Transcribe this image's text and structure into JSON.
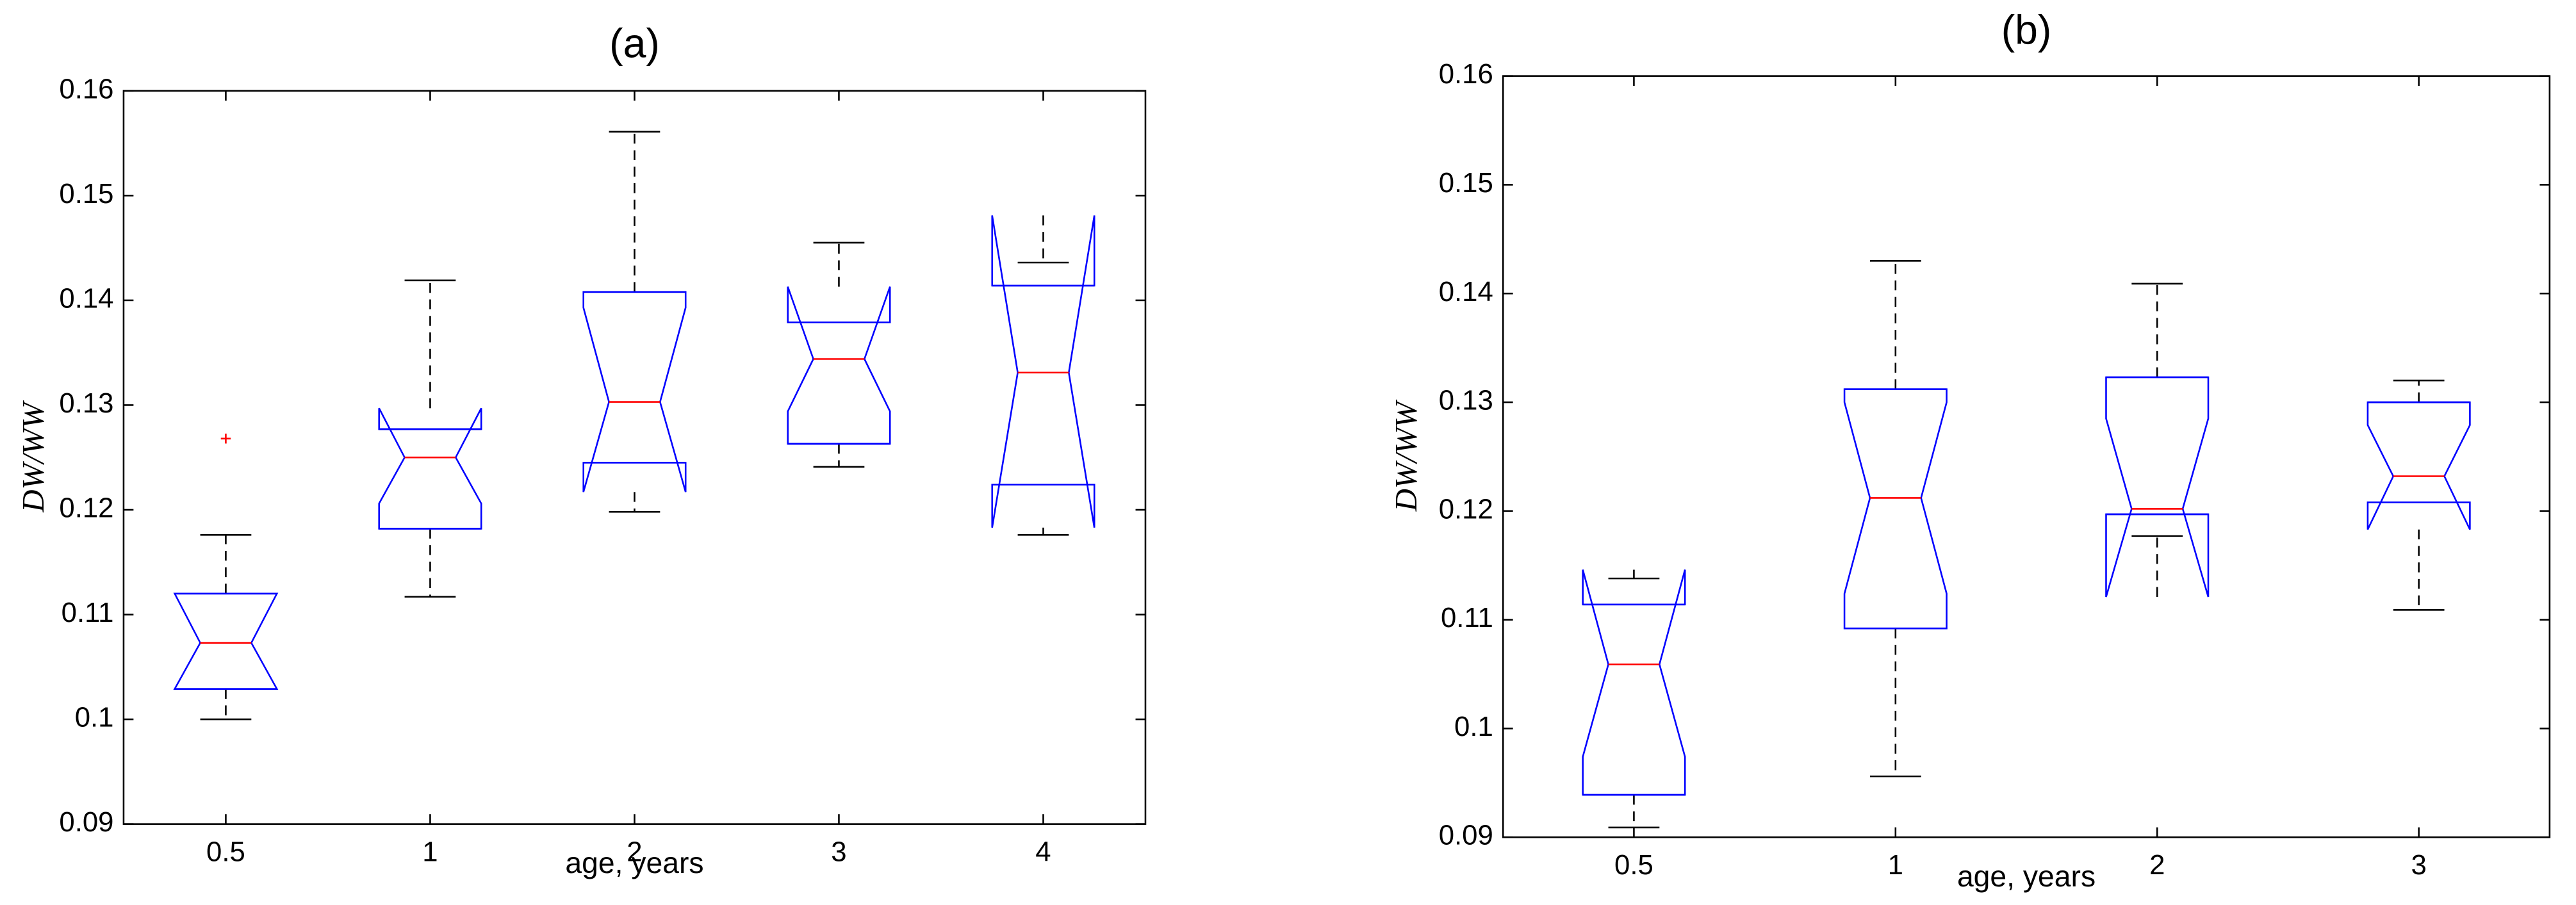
{
  "chart_data": [
    {
      "type": "box",
      "title": "(a)",
      "xlabel": "age, years",
      "ylabel": "DW/WW",
      "categories": [
        "0.5",
        "1",
        "2",
        "3",
        "4"
      ],
      "ylim": [
        0.09,
        0.16
      ],
      "yticks": [
        0.09,
        0.1,
        0.11,
        0.12,
        0.13,
        0.14,
        0.15,
        0.16
      ],
      "box_color": "#0000ff",
      "median_color": "#ff0000",
      "whisker_color": "#000000",
      "outlier_color": "#ff0000",
      "boxes": [
        {
          "whisker_low": 0.1,
          "q1": 0.1029,
          "notch_low": 0.1029,
          "median": 0.1073,
          "notch_high": 0.112,
          "q3": 0.112,
          "whisker_high": 0.1176,
          "outliers": [
            0.1268
          ]
        },
        {
          "whisker_low": 0.1117,
          "q1": 0.1182,
          "notch_low": 0.1206,
          "median": 0.125,
          "notch_high": 0.1297,
          "q3": 0.1277,
          "whisker_high": 0.1419,
          "outliers": []
        },
        {
          "whisker_low": 0.1198,
          "q1": 0.1245,
          "notch_low": 0.1217,
          "median": 0.1303,
          "notch_high": 0.1393,
          "q3": 0.1408,
          "whisker_high": 0.1561,
          "outliers": []
        },
        {
          "whisker_low": 0.1241,
          "q1": 0.1263,
          "notch_low": 0.1294,
          "median": 0.1344,
          "notch_high": 0.1413,
          "q3": 0.1379,
          "whisker_high": 0.1455,
          "outliers": []
        },
        {
          "whisker_low": 0.1176,
          "q1": 0.1224,
          "notch_low": 0.1183,
          "median": 0.1331,
          "notch_high": 0.1481,
          "q3": 0.1414,
          "whisker_high": 0.1436,
          "outliers": []
        }
      ]
    },
    {
      "type": "box",
      "title": "(b)",
      "xlabel": "age, years",
      "ylabel": "DW/WW",
      "categories": [
        "0.5",
        "1",
        "2",
        "3"
      ],
      "ylim": [
        0.09,
        0.16
      ],
      "yticks": [
        0.09,
        0.1,
        0.11,
        0.12,
        0.13,
        0.14,
        0.15,
        0.16
      ],
      "box_color": "#0000ff",
      "median_color": "#ff0000",
      "whisker_color": "#000000",
      "outlier_color": "#ff0000",
      "boxes": [
        {
          "whisker_low": 0.0909,
          "q1": 0.0939,
          "notch_low": 0.0974,
          "median": 0.1059,
          "notch_high": 0.1146,
          "q3": 0.1114,
          "whisker_high": 0.1138,
          "outliers": []
        },
        {
          "whisker_low": 0.0956,
          "q1": 0.1092,
          "notch_low": 0.1124,
          "median": 0.1212,
          "notch_high": 0.13,
          "q3": 0.1312,
          "whisker_high": 0.143,
          "outliers": []
        },
        {
          "whisker_low": 0.1177,
          "q1": 0.1197,
          "notch_low": 0.1121,
          "median": 0.1202,
          "notch_high": 0.1285,
          "q3": 0.1323,
          "whisker_high": 0.1409,
          "outliers": []
        },
        {
          "whisker_low": 0.1109,
          "q1": 0.1208,
          "notch_low": 0.1183,
          "median": 0.1232,
          "notch_high": 0.1279,
          "q3": 0.13,
          "whisker_high": 0.132,
          "outliers": []
        }
      ]
    }
  ]
}
